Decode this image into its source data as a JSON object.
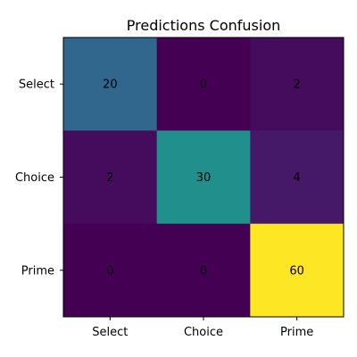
{
  "chart_data": {
    "type": "heatmap",
    "title": "Predictions Confusion",
    "xlabel": "",
    "ylabel": "",
    "x_categories": [
      "Select",
      "Choice",
      "Prime"
    ],
    "y_categories": [
      "Select",
      "Choice",
      "Prime"
    ],
    "values": [
      [
        20,
        0,
        2
      ],
      [
        2,
        30,
        4
      ],
      [
        0,
        0,
        60
      ]
    ],
    "value_range": [
      0,
      60
    ],
    "colormap": "viridis",
    "grid": false,
    "legend": "none"
  }
}
